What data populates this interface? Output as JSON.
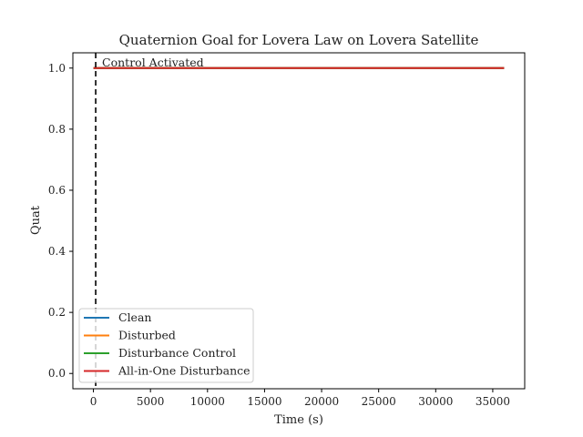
{
  "chart_data": {
    "type": "line",
    "title": "Quaternion Goal for Lovera Law on Lovera Satellite",
    "xlabel": "Time (s)",
    "ylabel": "Quat",
    "xlim": [
      -1800,
      37800
    ],
    "ylim": [
      -0.05,
      1.05
    ],
    "xticks": [
      0,
      5000,
      10000,
      15000,
      20000,
      25000,
      30000,
      35000
    ],
    "yticks": [
      0.0,
      0.2,
      0.4,
      0.6,
      0.8,
      1.0
    ],
    "xtick_labels": [
      "0",
      "5000",
      "10000",
      "15000",
      "20000",
      "25000",
      "30000",
      "35000"
    ],
    "ytick_labels": [
      "0.0",
      "0.2",
      "0.4",
      "0.6",
      "0.8",
      "1.0"
    ],
    "grid": false,
    "legend_position": "lower-left",
    "series": [
      {
        "name": "Clean",
        "color": "#1f77b4",
        "x": [
          0,
          36000
        ],
        "y": [
          1.0,
          1.0
        ]
      },
      {
        "name": "Disturbed",
        "color": "#ff7f0e",
        "x": [
          0,
          36000
        ],
        "y": [
          1.0,
          1.0
        ]
      },
      {
        "name": "Disturbance Control",
        "color": "#2ca02c",
        "x": [
          0,
          36000
        ],
        "y": [
          1.0,
          1.0
        ]
      },
      {
        "name": "All-in-One Disturbance",
        "color": "#d62728",
        "x": [
          0,
          36000
        ],
        "y": [
          1.0,
          1.0
        ]
      }
    ],
    "annotations": [
      {
        "type": "vline",
        "x": 200,
        "style": "dashed",
        "color": "#000000",
        "label": "Control Activated"
      }
    ]
  }
}
